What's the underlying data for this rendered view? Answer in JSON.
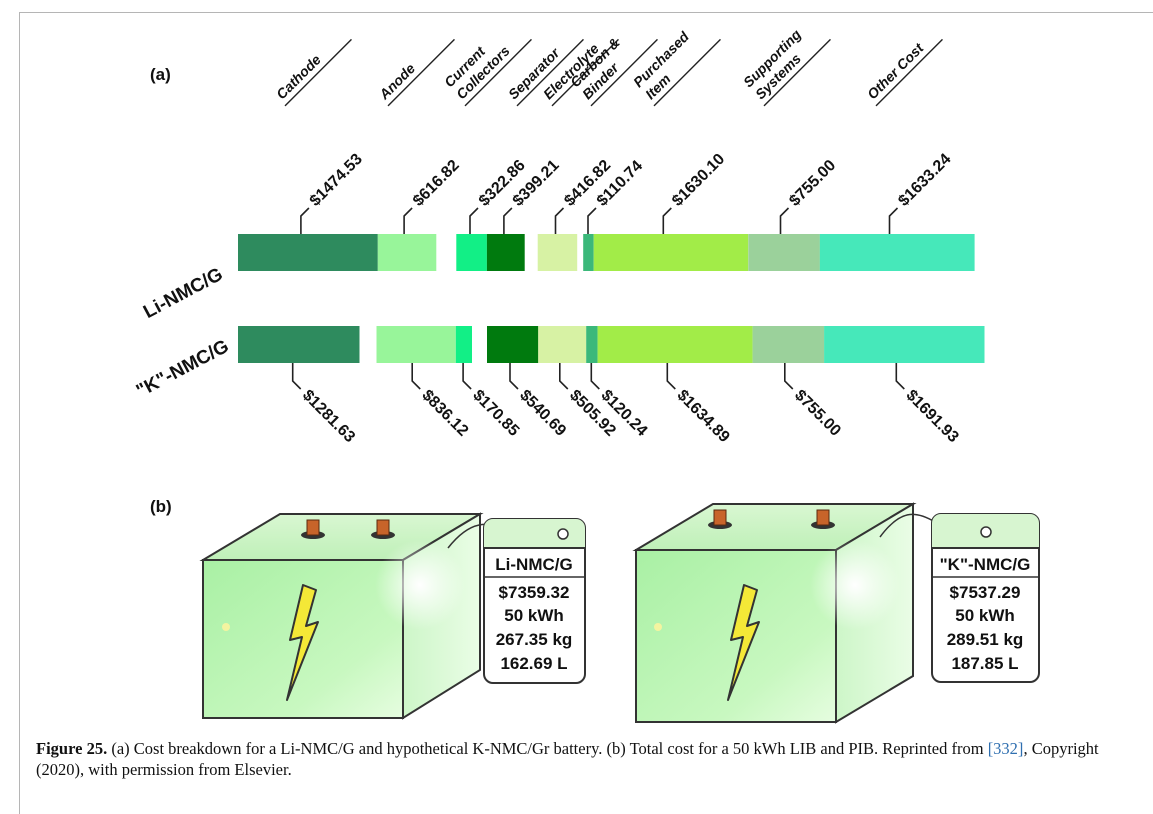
{
  "panel_labels": {
    "a": "(a)",
    "b": "(b)"
  },
  "chart_data": {
    "type": "bar",
    "stacked": true,
    "orientation": "horizontal",
    "categories": [
      "Cathode",
      "Anode",
      "Current Collectors",
      "Separator",
      "Electrolyte",
      "Carbon & Binder",
      "Purchased Item",
      "Supporting Systems",
      "Other Cost"
    ],
    "series": [
      {
        "name": "Li-NMC/G",
        "values": [
          1474.53,
          616.82,
          322.86,
          399.21,
          416.82,
          110.74,
          1630.1,
          755.0,
          1633.24
        ],
        "labels": [
          "$1474.53",
          "$616.82",
          "$322.86",
          "$399.21",
          "$416.82",
          "$110.74",
          "$1630.10",
          "$755.00",
          "$1633.24"
        ]
      },
      {
        "name": "\"K\"-NMC/G",
        "values": [
          1281.63,
          836.12,
          170.85,
          540.69,
          505.92,
          120.24,
          1634.89,
          755.0,
          1691.93
        ],
        "labels": [
          "$1281.63",
          "$836.12",
          "$170.85",
          "$540.69",
          "$505.92",
          "$120.24",
          "$1634.89",
          "$755.00",
          "$1691.93"
        ]
      }
    ],
    "colors": [
      "#2e8b5e",
      "#98f59a",
      "#12ef86",
      "#007a0e",
      "#d7f2a4",
      "#3bb87a",
      "#a2ec48",
      "#9bd19b",
      "#46e8ba"
    ]
  },
  "category_header_lines": [
    [
      "Cathode"
    ],
    [
      "Anode"
    ],
    [
      "Current",
      "Collectors"
    ],
    [
      "Separator"
    ],
    [
      "Electrolyte"
    ],
    [
      "Carbon &",
      "Binder"
    ],
    [
      "Purchased",
      "Item"
    ],
    [
      "Supporting",
      "Systems"
    ],
    [
      "Other Cost"
    ]
  ],
  "batteries": [
    {
      "name": "Li-NMC/G",
      "cost": "$7359.32",
      "energy": "50 kWh",
      "mass": "267.35 kg",
      "volume": "162.69 L"
    },
    {
      "name": "\"K\"-NMC/G",
      "cost": "$7537.29",
      "energy": "50 kWh",
      "mass": "289.51 kg",
      "volume": "187.85 L"
    }
  ],
  "caption": {
    "label": "Figure 25.",
    "text_before": " (a) Cost breakdown for a Li-NMC/G and hypothetical K-NMC/Gr battery. (b) Total cost for a 50 kWh LIB and PIB. Reprinted from ",
    "ref": "[332]",
    "text_after": ", Copyright (2020), with permission from Elsevier."
  }
}
